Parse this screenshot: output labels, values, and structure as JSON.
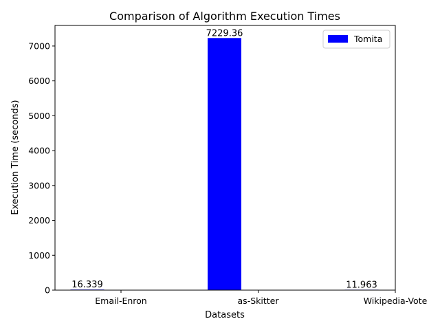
{
  "chart_data": {
    "type": "bar",
    "title": "Comparison of Algorithm Execution Times",
    "xlabel": "Datasets",
    "ylabel": "Execution Time (seconds)",
    "categories": [
      "Email-Enron",
      "as-Skitter",
      "Wikipedia-Vote"
    ],
    "series": [
      {
        "name": "Tomita",
        "values": [
          16.339,
          7229.36,
          11.963
        ],
        "labels": [
          "16.339",
          "7229.36",
          "11.963"
        ],
        "color": "#0000ff"
      }
    ],
    "ylim": [
      0,
      7590
    ],
    "yticks": [
      0,
      1000,
      2000,
      3000,
      4000,
      5000,
      6000,
      7000
    ],
    "legend": "top-right",
    "grid": false
  }
}
